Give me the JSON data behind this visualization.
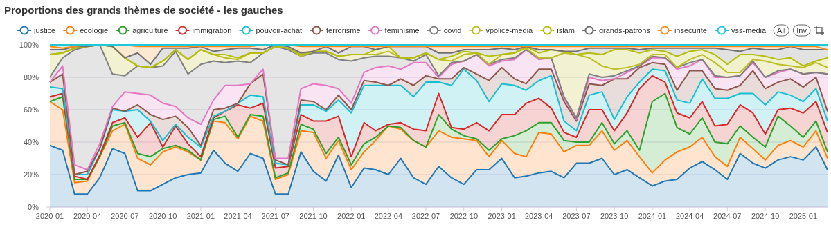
{
  "chart_data": {
    "type": "area",
    "stacked": true,
    "title": "Proportions des grands thèmes de société - les gauches",
    "legend": "top",
    "grid": "y",
    "x": [
      "2020-01",
      "2020-02",
      "2020-03",
      "2020-04",
      "2020-05",
      "2020-06",
      "2020-07",
      "2020-08",
      "2020-09",
      "2020-10",
      "2020-11",
      "2020-12",
      "2021-01",
      "2021-02",
      "2021-03",
      "2021-04",
      "2021-05",
      "2021-06",
      "2021-07",
      "2021-08",
      "2021-09",
      "2021-10",
      "2021-11",
      "2021-12",
      "2022-01",
      "2022-02",
      "2022-03",
      "2022-04",
      "2022-05",
      "2022-06",
      "2022-07",
      "2022-08",
      "2022-09",
      "2022-10",
      "2022-11",
      "2022-12",
      "2023-01",
      "2023-02",
      "2023-03",
      "2023-04",
      "2023-05",
      "2023-06",
      "2023-07",
      "2023-08",
      "2023-09",
      "2023-10",
      "2023-11",
      "2023-12",
      "2024-01",
      "2024-02",
      "2024-03",
      "2024-04",
      "2024-05",
      "2024-06",
      "2024-07",
      "2024-08",
      "2024-09",
      "2024-10",
      "2024-11",
      "2024-12",
      "2025-01",
      "2025-02",
      "2025-03"
    ],
    "xlim": [
      "2020-01",
      "2025-03"
    ],
    "xticks": [
      "2020-01",
      "2020-04",
      "2020-07",
      "2020-10",
      "2021-01",
      "2021-04",
      "2021-07",
      "2021-10",
      "2022-01",
      "2022-04",
      "2022-07",
      "2022-10",
      "2023-01",
      "2023-04",
      "2023-07",
      "2023-10",
      "2024-01",
      "2024-04",
      "2024-07",
      "2024-10",
      "2025-01"
    ],
    "ylim": [
      0,
      100
    ],
    "yticks": [
      {
        "value": 0,
        "label": "0%"
      },
      {
        "value": 20,
        "label": "20%"
      },
      {
        "value": 40,
        "label": "40%"
      },
      {
        "value": 60,
        "label": "60%"
      },
      {
        "value": 80,
        "label": "80%"
      },
      {
        "value": 100,
        "label": "100%"
      }
    ],
    "annotations": [
      "All",
      "Inv"
    ],
    "series": [
      {
        "name": "justice",
        "color": "#1f77b4",
        "values": [
          38,
          35,
          8,
          8,
          18,
          36,
          33,
          10,
          10,
          14,
          18,
          20,
          21,
          35,
          27,
          22,
          33,
          30,
          8,
          8,
          34,
          22,
          16,
          32,
          12,
          24,
          23,
          20,
          30,
          18,
          14,
          25,
          18,
          14,
          23,
          23,
          30,
          18,
          19,
          21,
          22,
          18,
          27,
          27,
          30,
          20,
          23,
          18,
          13,
          16,
          17,
          24,
          28,
          23,
          17,
          33,
          27,
          24,
          29,
          31,
          29,
          37,
          23
        ]
      },
      {
        "name": "ecologie",
        "color": "#ff7f0e",
        "values": [
          27,
          25,
          7,
          8,
          13,
          11,
          18,
          20,
          16,
          20,
          19,
          14,
          8,
          18,
          25,
          20,
          23,
          23,
          9,
          12,
          13,
          24,
          14,
          9,
          11,
          10,
          18,
          30,
          18,
          23,
          23,
          22,
          25,
          28,
          18,
          8,
          11,
          15,
          12,
          25,
          23,
          16,
          11,
          11,
          17,
          15,
          18,
          13,
          8,
          13,
          17,
          13,
          15,
          8,
          8,
          10,
          9,
          5,
          9,
          10,
          8,
          10,
          7
        ]
      },
      {
        "name": "agriculture",
        "color": "#2ca02c",
        "values": [
          0,
          8,
          2,
          1,
          0,
          3,
          1,
          3,
          5,
          2,
          1,
          1,
          0,
          1,
          4,
          1,
          1,
          3,
          1,
          1,
          4,
          2,
          3,
          2,
          3,
          5,
          2,
          0,
          1,
          0,
          0,
          10,
          5,
          2,
          1,
          4,
          1,
          11,
          16,
          6,
          7,
          7,
          2,
          2,
          5,
          4,
          6,
          4,
          44,
          41,
          15,
          8,
          12,
          9,
          14,
          7,
          7,
          8,
          18,
          9,
          6,
          6,
          4
        ]
      },
      {
        "name": "immigration",
        "color": "#d62728",
        "values": [
          3,
          2,
          2,
          0,
          1,
          2,
          3,
          10,
          21,
          1,
          12,
          4,
          2,
          1,
          3,
          20,
          4,
          8,
          6,
          4,
          6,
          5,
          20,
          13,
          5,
          13,
          4,
          1,
          3,
          7,
          10,
          13,
          1,
          4,
          10,
          12,
          15,
          13,
          17,
          15,
          9,
          5,
          3,
          20,
          8,
          8,
          11,
          38,
          16,
          7,
          9,
          10,
          10,
          10,
          12,
          13,
          15,
          8,
          4,
          11,
          15,
          12,
          12
        ]
      },
      {
        "name": "pouvoir-achat",
        "color": "#17becf",
        "values": [
          6,
          3,
          1,
          3,
          4,
          8,
          4,
          17,
          1,
          4,
          1,
          4,
          6,
          1,
          0,
          1,
          8,
          4,
          3,
          1,
          6,
          10,
          6,
          10,
          27,
          23,
          28,
          24,
          23,
          20,
          30,
          7,
          26,
          37,
          26,
          18,
          19,
          18,
          8,
          11,
          20,
          7,
          4,
          9,
          11,
          7,
          10,
          4,
          4,
          7,
          8,
          9,
          14,
          17,
          16,
          7,
          12,
          18,
          11,
          8,
          7,
          8,
          7
        ]
      },
      {
        "name": "terrorisme",
        "color": "#8c564b",
        "values": [
          3,
          9,
          0,
          2,
          0,
          1,
          0,
          3,
          4,
          13,
          5,
          6,
          1,
          4,
          2,
          0,
          7,
          14,
          2,
          0,
          3,
          2,
          1,
          3,
          2,
          3,
          2,
          0,
          4,
          7,
          4,
          2,
          4,
          1,
          4,
          13,
          10,
          4,
          4,
          7,
          4,
          12,
          6,
          7,
          4,
          25,
          11,
          9,
          4,
          4,
          6,
          20,
          5,
          6,
          5,
          5,
          14,
          10,
          6,
          10,
          9,
          7,
          6
        ]
      },
      {
        "name": "feminisme",
        "color": "#e377c2",
        "values": [
          0,
          5,
          6,
          1,
          3,
          1,
          12,
          7,
          12,
          10,
          6,
          6,
          13,
          6,
          14,
          11,
          0,
          3,
          1,
          4,
          7,
          11,
          15,
          4,
          4,
          5,
          9,
          12,
          6,
          14,
          8,
          1,
          9,
          4,
          12,
          9,
          4,
          12,
          21,
          6,
          7,
          2,
          1,
          4,
          3,
          0,
          4,
          1,
          3,
          4,
          13,
          3,
          7,
          7,
          8,
          6,
          5,
          7,
          6,
          6,
          8,
          3,
          23
        ]
      },
      {
        "name": "covid",
        "color": "#7f7f7f",
        "values": [
          3,
          5,
          71,
          76,
          61,
          20,
          10,
          17,
          17,
          23,
          34,
          27,
          37,
          24,
          14,
          15,
          13,
          10,
          69,
          67,
          20,
          19,
          20,
          18,
          26,
          9,
          7,
          6,
          7,
          1,
          5,
          1,
          1,
          0,
          0,
          1,
          1,
          1,
          0,
          1,
          0,
          1,
          1,
          2,
          2,
          2,
          1,
          0,
          1,
          0,
          1,
          2,
          0,
          1,
          0,
          0,
          1,
          0,
          1,
          0,
          0,
          0,
          0
        ]
      },
      {
        "name": "vpolice-media",
        "color": "#bcbd22",
        "values": [
          14,
          3,
          1,
          0,
          0,
          17,
          11,
          0,
          0,
          3,
          1,
          9,
          9,
          4,
          3,
          1,
          6,
          0,
          0,
          1,
          0,
          1,
          1,
          2,
          4,
          2,
          1,
          3,
          0,
          2,
          1,
          10,
          1,
          4,
          1,
          0,
          3,
          3,
          1,
          0,
          0,
          27,
          39,
          10,
          7,
          4,
          2,
          1,
          1,
          2,
          0,
          2,
          3,
          8,
          3,
          2,
          1,
          10,
          4,
          2,
          4,
          6,
          4
        ]
      },
      {
        "name": "islam",
        "color": "#b5bd0c",
        "values": [
          0,
          0,
          0,
          0,
          0,
          0,
          0,
          0,
          0,
          0,
          0,
          0,
          0,
          0,
          2,
          1,
          0,
          0,
          0,
          0,
          1,
          0,
          0,
          0,
          0,
          0,
          3,
          3,
          0,
          0,
          0,
          0,
          3,
          2,
          0,
          5,
          0,
          0,
          1,
          3,
          5,
          1,
          0,
          3,
          7,
          12,
          11,
          7,
          3,
          2,
          7,
          5,
          3,
          5,
          5,
          11,
          3,
          3,
          3,
          5,
          1,
          1,
          6
        ]
      },
      {
        "name": "grands-patrons",
        "color": "#707070",
        "values": [
          3,
          2,
          1,
          0,
          0,
          0,
          0,
          8,
          2,
          8,
          1,
          7,
          2,
          2,
          3,
          6,
          3,
          2,
          1,
          1,
          1,
          0,
          3,
          2,
          5,
          5,
          0,
          0,
          7,
          7,
          4,
          4,
          2,
          1,
          2,
          4,
          4,
          2,
          0,
          2,
          0,
          0,
          2,
          3,
          4,
          1,
          1,
          2,
          1,
          2,
          5,
          2,
          1,
          4,
          9,
          2,
          4,
          4,
          6,
          7,
          10,
          7,
          5
        ]
      },
      {
        "name": "insecurite",
        "color": "#ff8c1a",
        "values": [
          2,
          1,
          0,
          1,
          0,
          1,
          8,
          4,
          11,
          1,
          1,
          1,
          0,
          3,
          2,
          1,
          1,
          3,
          0,
          1,
          4,
          3,
          0,
          4,
          0,
          0,
          2,
          0,
          0,
          0,
          0,
          4,
          4,
          2,
          2,
          2,
          1,
          2,
          0,
          2,
          2,
          3,
          3,
          1,
          1,
          1,
          1,
          2,
          1,
          1,
          1,
          1,
          1,
          1,
          2,
          3,
          1,
          2,
          2,
          0,
          2,
          2,
          0
        ]
      },
      {
        "name": "vss-media",
        "color": "#1ec8d8",
        "values": [
          1,
          2,
          1,
          0,
          0,
          0,
          0,
          1,
          1,
          1,
          1,
          1,
          1,
          1,
          1,
          1,
          1,
          0,
          0,
          0,
          1,
          1,
          1,
          1,
          1,
          1,
          1,
          1,
          1,
          1,
          1,
          1,
          1,
          1,
          1,
          1,
          1,
          1,
          1,
          1,
          1,
          1,
          1,
          1,
          1,
          1,
          1,
          1,
          1,
          1,
          1,
          1,
          1,
          1,
          1,
          1,
          1,
          1,
          1,
          1,
          1,
          1,
          3
        ]
      }
    ]
  }
}
